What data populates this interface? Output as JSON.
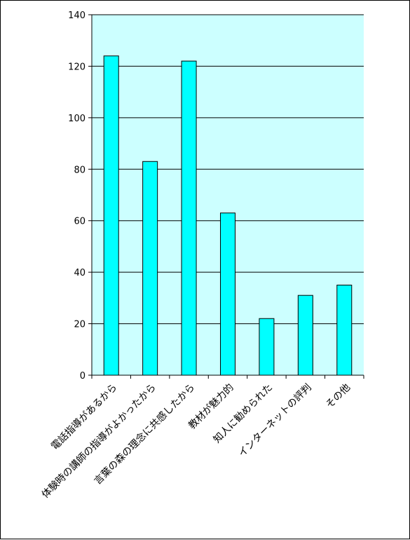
{
  "chart_data": {
    "type": "bar",
    "categories": [
      "電話指導があるから",
      "体験時の講師の指導がよかったから",
      "言葉の森の理念に共感したから",
      "教材が魅力的",
      "知人に勧められた",
      "インターネットの評判",
      "その他"
    ],
    "values": [
      124,
      83,
      122,
      63,
      22,
      31,
      35
    ],
    "ylim": [
      0,
      140
    ],
    "yticks": [
      0,
      20,
      40,
      60,
      80,
      100,
      120,
      140
    ],
    "grid": true,
    "legend": "none",
    "colors": {
      "plot_background": "#ccffff",
      "bar_fill": "#00ffff",
      "bar_stroke": "#000000",
      "gridline": "#000000"
    }
  }
}
